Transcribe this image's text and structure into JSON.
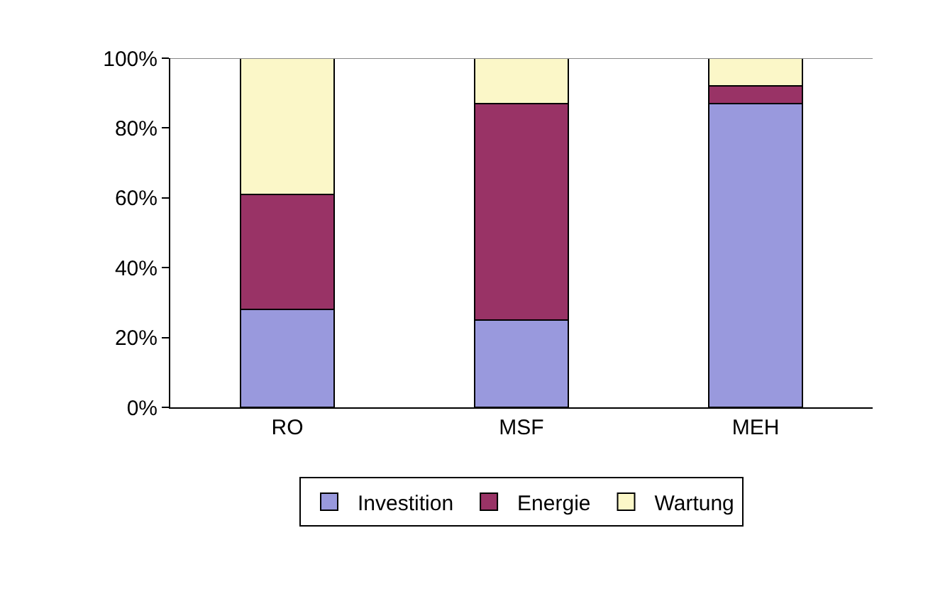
{
  "chart_data": {
    "type": "bar",
    "stacked": true,
    "categories": [
      "RO",
      "MSF",
      "MEH"
    ],
    "series": [
      {
        "name": "Investition",
        "color": "#9999dd",
        "values": [
          28,
          25,
          87
        ]
      },
      {
        "name": "Energie",
        "color": "#993366",
        "values": [
          33,
          62,
          5
        ]
      },
      {
        "name": "Wartung",
        "color": "#fbf7c8",
        "values": [
          39,
          13,
          8
        ]
      }
    ],
    "ylim": [
      0,
      100
    ],
    "yticks": [
      {
        "value": 0,
        "label": "0%"
      },
      {
        "value": 20,
        "label": "20%"
      },
      {
        "value": 40,
        "label": "40%"
      },
      {
        "value": 60,
        "label": "60%"
      },
      {
        "value": 80,
        "label": "80%"
      },
      {
        "value": 100,
        "label": "100%"
      }
    ],
    "legend": "bottom"
  }
}
